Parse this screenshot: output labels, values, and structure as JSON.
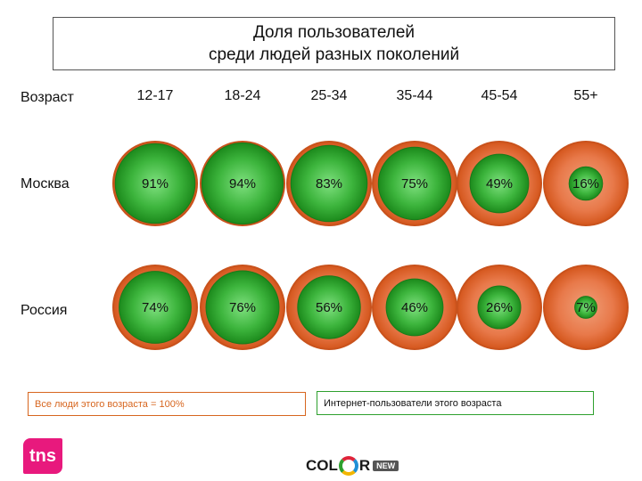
{
  "chart_data": {
    "type": "bubble",
    "title": [
      "Доля пользователей",
      "среди людей разных поколений"
    ],
    "row_header": "Возраст",
    "categories": [
      "12-17",
      "18-24",
      "25-34",
      "35-44",
      "45-54",
      "55+"
    ],
    "series": [
      {
        "name": "Москва",
        "values": [
          91,
          94,
          83,
          75,
          49,
          16
        ],
        "labels": [
          "91%",
          "94%",
          "83%",
          "75%",
          "49%",
          "16%"
        ]
      },
      {
        "name": "Россия",
        "values": [
          74,
          76,
          56,
          46,
          26,
          7
        ],
        "labels": [
          "74%",
          "76%",
          "56%",
          "46%",
          "26%",
          "7%"
        ]
      }
    ],
    "legend": {
      "outer": "Все люди этого возраста = 100%",
      "inner": "Интернет-пользователи этого возраста"
    },
    "colors": {
      "outer": "#e2652a",
      "inner": "#2fa52f"
    }
  },
  "logos": {
    "tns": "tns",
    "color": {
      "left": "COL",
      "right": "R",
      "tag": "NEW"
    }
  }
}
